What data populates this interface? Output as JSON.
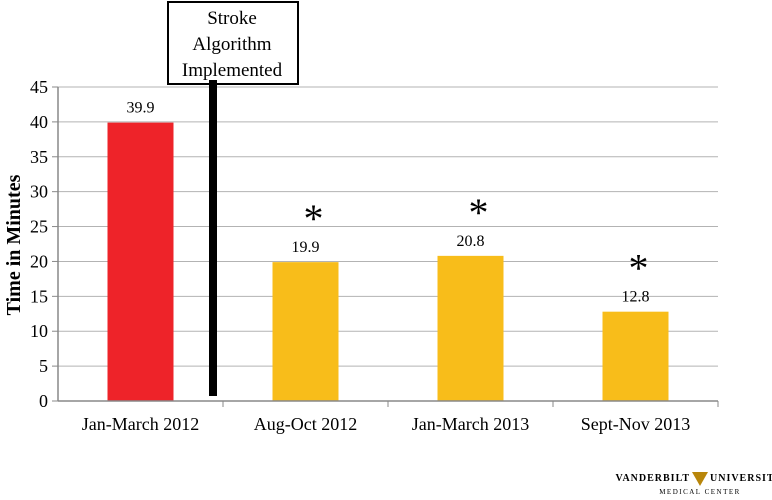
{
  "chart_data": {
    "type": "bar",
    "categories": [
      "Jan-March 2012",
      "Aug-Oct 2012",
      "Jan-March 2013",
      "Sept-Nov 2013"
    ],
    "values": [
      39.9,
      19.9,
      20.8,
      12.8
    ],
    "data_labels": [
      "39.9",
      "19.9",
      "20.8",
      "12.8"
    ],
    "significance_markers": [
      "",
      "*",
      "*",
      "*"
    ],
    "colors": [
      "#ee2329",
      "#f8bd1a",
      "#f8bd1a",
      "#f8bd1a"
    ],
    "ylabel": "Time in Minutes",
    "ylim": [
      0,
      45
    ],
    "yticks": [
      0,
      5,
      10,
      15,
      20,
      25,
      30,
      35,
      40,
      45
    ],
    "grid": true,
    "annotation": {
      "lines": [
        "Stroke",
        "Algorithm",
        "Implemented"
      ],
      "between_categories": [
        0,
        1
      ]
    }
  },
  "logo": {
    "line1_left": "VANDERBILT",
    "line1_right": "UNIVERSITY",
    "line2": "MEDICAL CENTER"
  }
}
